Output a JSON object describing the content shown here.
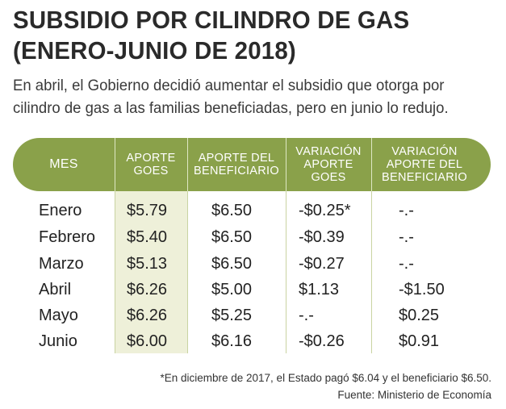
{
  "title": "SUBSIDIO POR CILINDRO DE GAS (ENERO-JUNIO DE 2018)",
  "subtitle": "En abril, el Gobierno decidió aumentar el subsidio que otorga por cilindro de gas a las familias beneficiadas, pero en junio lo redujo.",
  "colors": {
    "header_bg": "#8aa14a",
    "goes_column_bg": "#eef0d9"
  },
  "table": {
    "headers": [
      "MES",
      "APORTE GOES",
      "APORTE DEL BENEFICIARIO",
      "VARIACIÓN APORTE GOES",
      "VARIACIÓN APORTE DEL BENEFICIARIO"
    ],
    "rows": [
      [
        "Enero",
        "$5.79",
        "$6.50",
        "-$0.25*",
        "-.-"
      ],
      [
        "Febrero",
        "$5.40",
        "$6.50",
        "-$0.39",
        "-.-"
      ],
      [
        "Marzo",
        "$5.13",
        "$6.50",
        "-$0.27",
        "-.-"
      ],
      [
        "Abril",
        "$6.26",
        "$5.00",
        "$1.13",
        "-$1.50"
      ],
      [
        "Mayo",
        "$6.26",
        "$5.25",
        "-.-",
        "$0.25"
      ],
      [
        "Junio",
        "$6.00",
        "$6.16",
        "-$0.26",
        "$0.91"
      ]
    ]
  },
  "footnote": "*En diciembre de 2017, el Estado pagó $6.04 y el beneficiario $6.50.",
  "source": "Fuente: Ministerio de Economía"
}
